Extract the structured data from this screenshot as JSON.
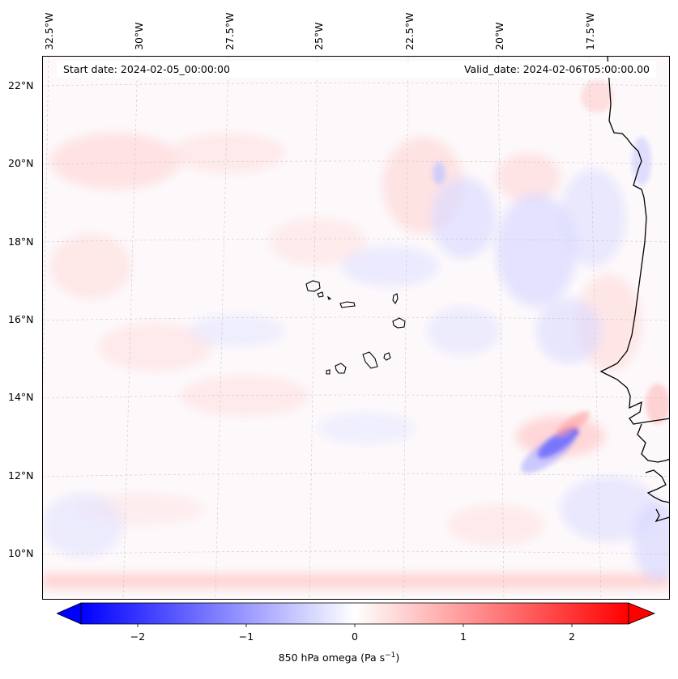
{
  "header": {
    "start_date": "Start date: 2024-02-05_00:00:00",
    "valid_date": "Valid_date: 2024-02-06T05:00:00.00"
  },
  "longitude_labels": [
    "32.5°W",
    "30°W",
    "27.5°W",
    "25°W",
    "22.5°W",
    "20°W",
    "17.5°W"
  ],
  "latitude_labels": [
    "22°N",
    "20°N",
    "18°N",
    "16°N",
    "14°N",
    "12°N",
    "10°N"
  ],
  "colorbar": {
    "ticks": [
      "−2",
      "−1",
      "0",
      "1",
      "2"
    ],
    "label": "850 hPa omega (Pa s",
    "label_sup": "−1",
    "label_end": ")",
    "min": -2.7,
    "max": 2.7,
    "low_color": "#0000ff",
    "mid_color": "#ffffff",
    "high_color": "#ff0000"
  },
  "map": {
    "field": "850 hPa omega",
    "grid": true,
    "features": [
      "coastline-west-africa",
      "cape-verde-islands"
    ]
  }
}
